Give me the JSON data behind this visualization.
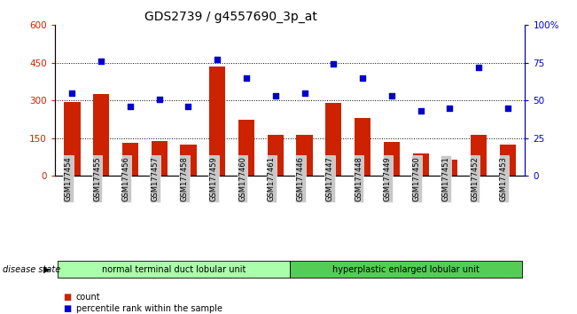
{
  "title": "GDS2739 / g4557690_3p_at",
  "samples": [
    "GSM177454",
    "GSM177455",
    "GSM177456",
    "GSM177457",
    "GSM177458",
    "GSM177459",
    "GSM177460",
    "GSM177461",
    "GSM177446",
    "GSM177447",
    "GSM177448",
    "GSM177449",
    "GSM177450",
    "GSM177451",
    "GSM177452",
    "GSM177453"
  ],
  "counts": [
    295,
    325,
    130,
    140,
    125,
    435,
    225,
    165,
    165,
    290,
    230,
    135,
    90,
    65,
    165,
    125
  ],
  "percentiles": [
    55,
    76,
    46,
    51,
    46,
    77,
    65,
    53,
    55,
    74,
    65,
    53,
    43,
    45,
    72,
    45
  ],
  "bar_color": "#cc2200",
  "scatter_color": "#0000cc",
  "ylim_left": [
    0,
    600
  ],
  "ylim_right": [
    0,
    100
  ],
  "yticks_left": [
    0,
    150,
    300,
    450,
    600
  ],
  "yticks_right": [
    0,
    25,
    50,
    75,
    100
  ],
  "hlines": [
    150,
    300,
    450
  ],
  "group1_label": "normal terminal duct lobular unit",
  "group2_label": "hyperplastic enlarged lobular unit",
  "group1_count": 8,
  "group2_count": 8,
  "group1_color": "#aaffaa",
  "group2_color": "#55cc55",
  "disease_state_label": "disease state",
  "legend_count_label": "count",
  "legend_percentile_label": "percentile rank within the sample",
  "title_fontsize": 10,
  "bar_color_left_axis": "#cc2200",
  "scatter_color_right_axis": "#0000cc",
  "bar_width": 0.55,
  "tick_bg_color": "#c8c8c8"
}
